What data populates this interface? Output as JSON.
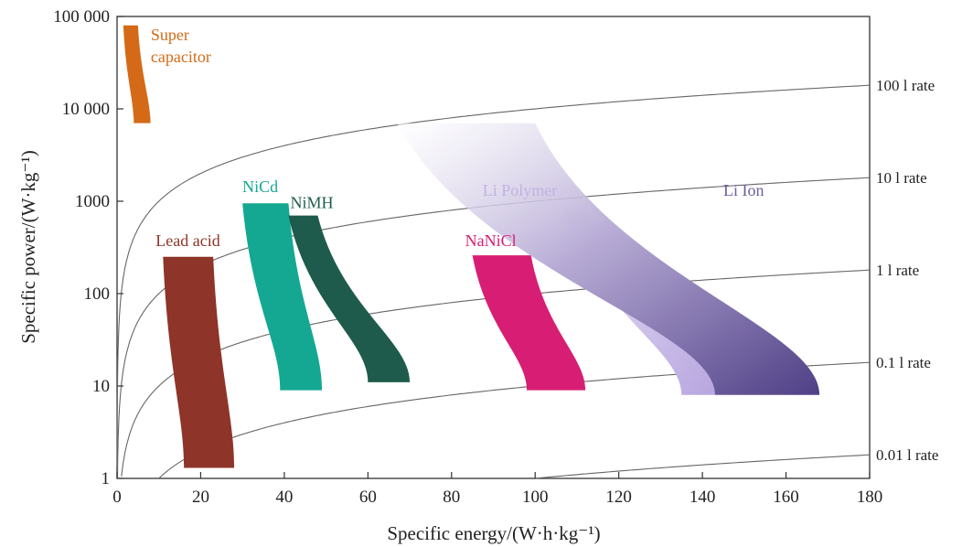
{
  "chart_data": {
    "type": "area",
    "xlabel": "Specific energy/(W·h·kg⁻¹)",
    "ylabel": "Specific power/(W·kg⁻¹)",
    "xlim": [
      0,
      180
    ],
    "ylim": [
      1,
      100000
    ],
    "yscale": "log",
    "grid": false,
    "x_ticks": [
      0,
      20,
      40,
      60,
      80,
      100,
      120,
      140,
      160,
      180
    ],
    "x_tick_labels": [
      "0",
      "20",
      "40",
      "60",
      "80",
      "100",
      "120",
      "140",
      "160",
      "180"
    ],
    "y_ticks": [
      1,
      10,
      100,
      1000,
      10000,
      100000
    ],
    "y_tick_labels": [
      "1",
      "10",
      "100",
      "1000",
      "10 000",
      "100 000"
    ],
    "rate_lines": [
      {
        "label": "100 l rate",
        "rate": 100
      },
      {
        "label": "10 l rate",
        "rate": 10
      },
      {
        "label": "1 l rate",
        "rate": 1
      },
      {
        "label": "0.1 l rate",
        "rate": 0.1
      },
      {
        "label": "0.01 l rate",
        "rate": 0.01
      }
    ],
    "regions": [
      {
        "name": "Super capacitor",
        "label_lines": [
          "Super",
          "capacitor"
        ],
        "color": "#d46a17",
        "top_left": [
          1.5,
          80000
        ],
        "top_right": [
          5,
          80000
        ],
        "bottom_left": [
          4,
          7000
        ],
        "bottom_right": [
          8,
          7000
        ]
      },
      {
        "name": "Lead acid",
        "label_lines": [
          "Lead acid"
        ],
        "color": "#8e3428",
        "top_left": [
          11,
          250
        ],
        "top_right": [
          23,
          250
        ],
        "bottom_left": [
          16,
          1.3
        ],
        "bottom_right": [
          28,
          1.3
        ]
      },
      {
        "name": "NiCd",
        "label_lines": [
          "NiCd"
        ],
        "color": "#14a892",
        "top_left": [
          30,
          950
        ],
        "top_right": [
          41,
          950
        ],
        "bottom_left": [
          39,
          9
        ],
        "bottom_right": [
          49,
          9
        ]
      },
      {
        "name": "NiMH",
        "label_lines": [
          "NiMH"
        ],
        "color": "#1f5b4c",
        "top_left": [
          41,
          700
        ],
        "top_right": [
          48,
          700
        ],
        "bottom_left": [
          60,
          11
        ],
        "bottom_right": [
          70,
          11
        ]
      },
      {
        "name": "NaNiCl",
        "label_lines": [
          "NaNiCl"
        ],
        "color": "#d81e74",
        "top_left": [
          85,
          260
        ],
        "top_right": [
          99,
          260
        ],
        "bottom_left": [
          98,
          9
        ],
        "bottom_right": [
          112,
          9
        ]
      },
      {
        "name": "Li Polymer",
        "label_lines": [
          "Li Polymer"
        ],
        "color": "#c2b2e2",
        "top_left": [
          107,
          800
        ],
        "top_right": [
          112,
          800
        ],
        "bottom_left": [
          135,
          8
        ],
        "bottom_right": [
          143,
          8
        ]
      },
      {
        "name": "Li Ion",
        "label_lines": [
          "Li Ion"
        ],
        "color": "#6f5d9e",
        "top_left": [
          67,
          7000
        ],
        "top_right": [
          100,
          7000
        ],
        "bottom_left": [
          143,
          8
        ],
        "bottom_right": [
          168,
          8
        ]
      }
    ]
  }
}
